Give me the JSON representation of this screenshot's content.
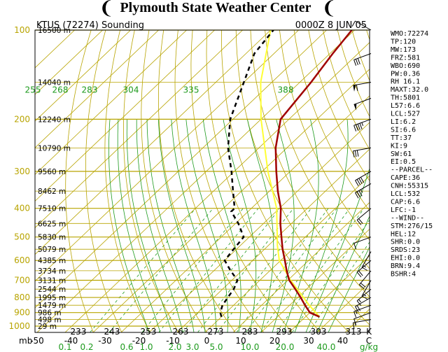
{
  "header": {
    "title": "Plymouth State Weather Center",
    "station": "KTUS (72274) Sounding",
    "time": "0000Z  8 JUN 05"
  },
  "colors": {
    "isobar": "#b8a400",
    "isotherm": "#b8a400",
    "dry_adiabat": "#b8a400",
    "moist_adiabat": "#1d9a1d",
    "mixing_ratio": "#1d9a1d",
    "temperature": "#a00000",
    "dewpoint": "#000000",
    "parcel": "#ffff33",
    "wind_barb": "#000000"
  },
  "indices": [
    "WMO:72274",
    "TP:120",
    "MW:173",
    "FRZ:581",
    "WBO:690",
    "PW:0.36",
    "RH 16.1",
    "MAXT:32.0",
    "TH:5801",
    "L57:6.6",
    "LCL:527",
    "LI:6.2",
    "SI:6.6",
    "TT:37",
    "KI:9",
    "SW:61",
    "EI:0.5",
    "--PARCEL--",
    "CAPE:36",
    "CNH:55315",
    "LCL:532",
    "CAP:6.6",
    "LFC:-1",
    "--WIND--",
    "STM:276/15",
    "HEL:12",
    "SHR:0.0",
    "SRDS:23",
    "EHI:0.0",
    "BRN:9.4",
    "BSHR:4"
  ],
  "chart_data": {
    "type": "skew-t",
    "title": "KTUS (72274) Sounding",
    "time_label": "0000Z  8 JUN 05",
    "pressure_levels": [
      100,
      200,
      300,
      400,
      500,
      600,
      700,
      800,
      900,
      1000
    ],
    "pressure_labels": [
      "100",
      "200",
      "300",
      "400",
      "500",
      "600",
      "700",
      "800",
      "900",
      "1000"
    ],
    "pressure_axis_note": "mb",
    "heights": [
      {
        "p": 100,
        "label": "16500 m"
      },
      {
        "p": 150,
        "label": "14040 m"
      },
      {
        "p": 200,
        "label": "12240 m"
      },
      {
        "p": 250,
        "label": "10790 m"
      },
      {
        "p": 300,
        "label": "9560 m"
      },
      {
        "p": 350,
        "label": "8462 m"
      },
      {
        "p": 400,
        "label": "7510 m"
      },
      {
        "p": 450,
        "label": "6625 m"
      },
      {
        "p": 500,
        "label": "5830 m"
      },
      {
        "p": 550,
        "label": "5079 m"
      },
      {
        "p": 600,
        "label": "4385 m"
      },
      {
        "p": 650,
        "label": "3734 m"
      },
      {
        "p": 700,
        "label": "3131 m"
      },
      {
        "p": 750,
        "label": "2544 m"
      },
      {
        "p": 800,
        "label": "1995 m"
      },
      {
        "p": 850,
        "label": "1479 m"
      },
      {
        "p": 900,
        "label": "986 m"
      },
      {
        "p": 950,
        "label": "498 m"
      },
      {
        "p": 1000,
        "label": "29 m"
      }
    ],
    "temperature_ticks": [
      "-50",
      "-40",
      "-30",
      "-20",
      "-10",
      "0",
      "10",
      "20",
      "30",
      "40"
    ],
    "temperature_unit": "C",
    "kelvin_ticks": [
      "233",
      "243",
      "253",
      "263",
      "273",
      "283",
      "293",
      "303",
      "313"
    ],
    "kelvin_unit": "K",
    "theta_ticks": [
      "255",
      "268",
      "283",
      "304",
      "335",
      "388"
    ],
    "mixing_ratio_ticks": [
      "0.1",
      "0.2",
      "0.6",
      "1.0",
      "2.0",
      "3.0",
      "5.0",
      "10.0",
      "20.0",
      "40.0"
    ],
    "mixing_ratio_unit": "g/kg",
    "temperature": [
      {
        "p": 930,
        "t": 35
      },
      {
        "p": 900,
        "t": 30
      },
      {
        "p": 850,
        "t": 25.5
      },
      {
        "p": 800,
        "t": 21
      },
      {
        "p": 750,
        "t": 16
      },
      {
        "p": 700,
        "t": 10.5
      },
      {
        "p": 650,
        "t": 6
      },
      {
        "p": 600,
        "t": 1.5
      },
      {
        "p": 550,
        "t": -3.5
      },
      {
        "p": 500,
        "t": -8.5
      },
      {
        "p": 450,
        "t": -14
      },
      {
        "p": 400,
        "t": -19.5
      },
      {
        "p": 350,
        "t": -27
      },
      {
        "p": 300,
        "t": -35
      },
      {
        "p": 250,
        "t": -44
      },
      {
        "p": 200,
        "t": -53
      },
      {
        "p": 150,
        "t": -56
      },
      {
        "p": 120,
        "t": -59
      },
      {
        "p": 100,
        "t": -61
      }
    ],
    "dewpoint": [
      {
        "p": 930,
        "t": 0
      },
      {
        "p": 900,
        "t": -2
      },
      {
        "p": 850,
        "t": -4
      },
      {
        "p": 800,
        "t": -5
      },
      {
        "p": 750,
        "t": -6
      },
      {
        "p": 700,
        "t": -8
      },
      {
        "p": 650,
        "t": -14
      },
      {
        "p": 600,
        "t": -20
      },
      {
        "p": 550,
        "t": -21
      },
      {
        "p": 500,
        "t": -22
      },
      {
        "p": 450,
        "t": -29
      },
      {
        "p": 410,
        "t": -36
      },
      {
        "p": 400,
        "t": -36
      },
      {
        "p": 350,
        "t": -43
      },
      {
        "p": 300,
        "t": -51
      },
      {
        "p": 250,
        "t": -61
      },
      {
        "p": 200,
        "t": -71
      },
      {
        "p": 150,
        "t": -80
      },
      {
        "p": 120,
        "t": -87
      },
      {
        "p": 100,
        "t": -89
      }
    ],
    "parcel": [
      {
        "p": 930,
        "t": 35
      },
      {
        "p": 850,
        "t": 27
      },
      {
        "p": 700,
        "t": 11
      },
      {
        "p": 600,
        "t": -0.5
      },
      {
        "p": 532,
        "t": -7
      },
      {
        "p": 500,
        "t": -10
      },
      {
        "p": 400,
        "t": -21
      },
      {
        "p": 300,
        "t": -38
      },
      {
        "p": 200,
        "t": -60
      },
      {
        "p": 150,
        "t": -74
      },
      {
        "p": 100,
        "t": -90
      }
    ],
    "wind_barbs": [
      {
        "p": 100,
        "dir": 300,
        "spd": 10
      },
      {
        "p": 120,
        "dir": 250,
        "spd": 30
      },
      {
        "p": 150,
        "dir": 260,
        "spd": 60
      },
      {
        "p": 170,
        "dir": 250,
        "spd": 50
      },
      {
        "p": 200,
        "dir": 250,
        "spd": 45
      },
      {
        "p": 250,
        "dir": 260,
        "spd": 30
      },
      {
        "p": 300,
        "dir": 240,
        "spd": 40
      },
      {
        "p": 330,
        "dir": 240,
        "spd": 35
      },
      {
        "p": 400,
        "dir": 230,
        "spd": 20
      },
      {
        "p": 500,
        "dir": 250,
        "spd": 10
      },
      {
        "p": 560,
        "dir": 210,
        "spd": 15
      },
      {
        "p": 600,
        "dir": 230,
        "spd": 20
      },
      {
        "p": 650,
        "dir": 220,
        "spd": 20
      },
      {
        "p": 700,
        "dir": 210,
        "spd": 15
      },
      {
        "p": 750,
        "dir": 230,
        "spd": 15
      },
      {
        "p": 800,
        "dir": 240,
        "spd": 20
      },
      {
        "p": 850,
        "dir": 250,
        "spd": 15
      },
      {
        "p": 900,
        "dir": 250,
        "spd": 10
      },
      {
        "p": 950,
        "dir": 260,
        "spd": 15
      }
    ]
  }
}
